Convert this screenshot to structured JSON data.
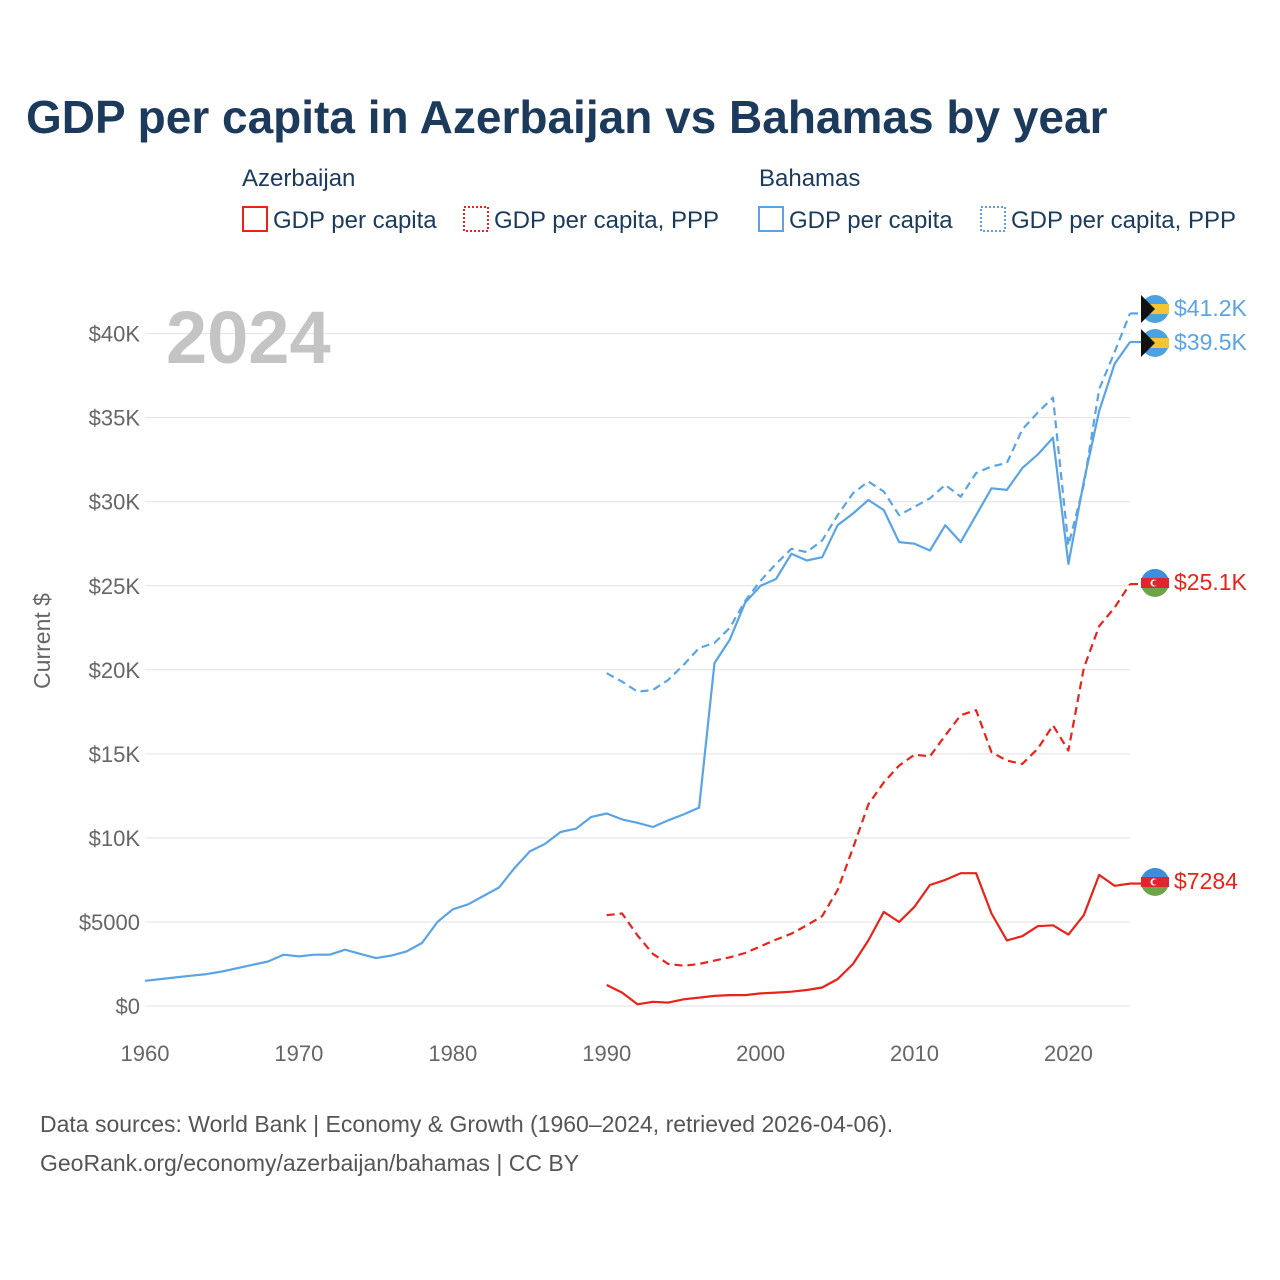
{
  "colors": {
    "azerbaijan": "#e8231a",
    "bahamas": "#5aa4e6",
    "title": "#1b3a5c",
    "axis_text": "#666666",
    "year_text": "#c4c4c4"
  },
  "legend": {
    "groups": [
      {
        "country": "Azerbaijan",
        "items": [
          {
            "label": "GDP per capita",
            "style": "solid"
          },
          {
            "label": "GDP per capita, PPP",
            "style": "dotted"
          }
        ]
      },
      {
        "country": "Bahamas",
        "items": [
          {
            "label": "GDP per capita",
            "style": "solid"
          },
          {
            "label": "GDP per capita, PPP",
            "style": "dotted"
          }
        ]
      }
    ]
  },
  "chart_data": {
    "type": "line",
    "title": "GDP per capita in Azerbaijan vs Bahamas by year",
    "year_label": "2024",
    "xlabel": "",
    "ylabel": "Current $",
    "xlim": [
      1960,
      2024
    ],
    "ylim": [
      0,
      42000
    ],
    "x_ticks": [
      1960,
      1970,
      1980,
      1990,
      2000,
      2010,
      2020
    ],
    "y_ticks": [
      {
        "value": 0,
        "label": "$0"
      },
      {
        "value": 5000,
        "label": "$5000"
      },
      {
        "value": 10000,
        "label": "$10K"
      },
      {
        "value": 15000,
        "label": "$15K"
      },
      {
        "value": 20000,
        "label": "$20K"
      },
      {
        "value": 25000,
        "label": "$25K"
      },
      {
        "value": 30000,
        "label": "$30K"
      },
      {
        "value": 35000,
        "label": "$35K"
      },
      {
        "value": 40000,
        "label": "$40K"
      }
    ],
    "grid": true,
    "series": [
      {
        "name": "Bahamas GDP per capita, PPP",
        "country": "Bahamas",
        "dash": "dashed",
        "end_label": "$41.2K",
        "x": [
          1990,
          1991,
          1992,
          1993,
          1994,
          1995,
          1996,
          1997,
          1998,
          1999,
          2000,
          2001,
          2002,
          2003,
          2004,
          2005,
          2006,
          2007,
          2008,
          2009,
          2010,
          2011,
          2012,
          2013,
          2014,
          2015,
          2016,
          2017,
          2018,
          2019,
          2020,
          2021,
          2022,
          2023,
          2024
        ],
        "values": [
          19800,
          19300,
          18700,
          18800,
          19400,
          20300,
          21300,
          21600,
          22500,
          24100,
          25300,
          26300,
          27200,
          27000,
          27700,
          29200,
          30500,
          31200,
          30600,
          29200,
          29700,
          30200,
          31000,
          30300,
          31700,
          32100,
          32300,
          34300,
          35300,
          36200,
          27400,
          31000,
          36700,
          38900,
          41200
        ]
      },
      {
        "name": "Bahamas GDP per capita",
        "country": "Bahamas",
        "dash": "solid",
        "end_label": "$39.5K",
        "x": [
          1960,
          1961,
          1962,
          1963,
          1964,
          1965,
          1966,
          1967,
          1968,
          1969,
          1970,
          1971,
          1972,
          1973,
          1974,
          1975,
          1976,
          1977,
          1978,
          1979,
          1980,
          1981,
          1982,
          1983,
          1984,
          1985,
          1986,
          1987,
          1988,
          1989,
          1990,
          1991,
          1992,
          1993,
          1994,
          1995,
          1996,
          1997,
          1998,
          1999,
          2000,
          2001,
          2002,
          2003,
          2004,
          2005,
          2006,
          2007,
          2008,
          2009,
          2010,
          2011,
          2012,
          2013,
          2014,
          2015,
          2016,
          2017,
          2018,
          2019,
          2020,
          2021,
          2022,
          2023,
          2024
        ],
        "values": [
          1500,
          1600,
          1700,
          1800,
          1900,
          2050,
          2250,
          2450,
          2650,
          3050,
          2950,
          3050,
          3050,
          3350,
          3100,
          2850,
          3000,
          3250,
          3750,
          5000,
          5750,
          6050,
          6550,
          7050,
          8200,
          9200,
          9650,
          10350,
          10550,
          11250,
          11450,
          11100,
          10900,
          10650,
          11050,
          11400,
          11800,
          20400,
          21800,
          24000,
          25000,
          25400,
          26900,
          26500,
          26700,
          28600,
          29300,
          30100,
          29500,
          27600,
          27500,
          27100,
          28600,
          27600,
          29200,
          30800,
          30700,
          32000,
          32800,
          33800,
          26300,
          31200,
          35400,
          38200,
          39500
        ]
      },
      {
        "name": "Azerbaijan GDP per capita, PPP",
        "country": "Azerbaijan",
        "dash": "dashed",
        "end_label": "$25.1K",
        "x": [
          1990,
          1991,
          1992,
          1993,
          1994,
          1995,
          1996,
          1997,
          1998,
          1999,
          2000,
          2001,
          2002,
          2003,
          2004,
          2005,
          2006,
          2007,
          2008,
          2009,
          2010,
          2011,
          2012,
          2013,
          2014,
          2015,
          2016,
          2017,
          2018,
          2019,
          2020,
          2021,
          2022,
          2023,
          2024
        ],
        "values": [
          5400,
          5500,
          4200,
          3100,
          2500,
          2400,
          2500,
          2700,
          2900,
          3150,
          3550,
          3950,
          4300,
          4800,
          5350,
          6900,
          9400,
          12000,
          13300,
          14300,
          14950,
          14850,
          16100,
          17300,
          17600,
          15100,
          14600,
          14400,
          15300,
          16700,
          15200,
          20100,
          22600,
          23700,
          25100
        ]
      },
      {
        "name": "Azerbaijan GDP per capita",
        "country": "Azerbaijan",
        "dash": "solid",
        "end_label": "$7284",
        "x": [
          1990,
          1991,
          1992,
          1993,
          1994,
          1995,
          1996,
          1997,
          1998,
          1999,
          2000,
          2001,
          2002,
          2003,
          2004,
          2005,
          2006,
          2007,
          2008,
          2009,
          2010,
          2011,
          2012,
          2013,
          2014,
          2015,
          2016,
          2017,
          2018,
          2019,
          2020,
          2021,
          2022,
          2023,
          2024
        ],
        "values": [
          1250,
          800,
          100,
          250,
          200,
          400,
          500,
          600,
          650,
          650,
          750,
          800,
          850,
          950,
          1100,
          1600,
          2500,
          3900,
          5600,
          5000,
          5900,
          7200,
          7500,
          7900,
          7900,
          5500,
          3900,
          4150,
          4750,
          4800,
          4250,
          5400,
          7800,
          7150,
          7284
        ]
      }
    ]
  },
  "footer": {
    "line1": "Data sources: World Bank | Economy & Growth (1960–2024, retrieved 2026-04-06).",
    "line2": "GeoRank.org/economy/azerbaijan/bahamas | CC BY"
  }
}
